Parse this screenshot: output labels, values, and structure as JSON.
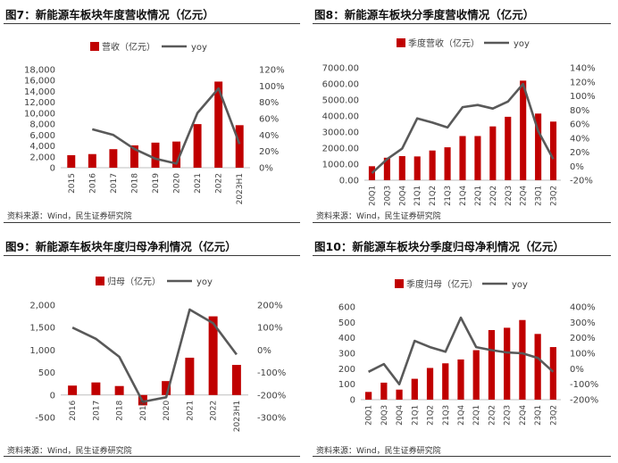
{
  "source_text": "资料来源：Wind，民生证券研究院",
  "colors": {
    "bar": "#c00000",
    "line": "#595959",
    "axis": "#bfbfbf",
    "text": "#404040"
  },
  "chart_data": [
    {
      "type": "bar",
      "title": "图7：新能源车板块年度营收情况（亿元）",
      "categories": [
        "2015",
        "2016",
        "2017",
        "2018",
        "2019",
        "2020",
        "2021",
        "2022",
        "2023H1"
      ],
      "series": [
        {
          "name": "营收（亿元）",
          "kind": "bar",
          "axis": "left",
          "values": [
            2300,
            2500,
            3400,
            4100,
            4600,
            4800,
            8000,
            15800,
            7800
          ]
        },
        {
          "name": "yoy",
          "kind": "line",
          "axis": "right",
          "values": [
            null,
            47,
            40,
            23,
            11,
            5,
            67,
            97,
            29
          ]
        }
      ],
      "ylim": [
        0,
        18000
      ],
      "y_ticks": [
        0,
        2000,
        4000,
        6000,
        8000,
        10000,
        12000,
        14000,
        16000,
        18000
      ],
      "y_tick_labels": [
        "0",
        "2,000",
        "4,000",
        "6,000",
        "8,000",
        "10,000",
        "12,000",
        "14,000",
        "16,000",
        "18,000"
      ],
      "y2lim": [
        0,
        120
      ],
      "y2_ticks": [
        0,
        20,
        40,
        60,
        80,
        100,
        120
      ],
      "y2_tick_labels": [
        "0%",
        "20%",
        "40%",
        "60%",
        "80%",
        "100%",
        "120%"
      ],
      "legend": "top-center"
    },
    {
      "type": "bar",
      "title": "图8：新能源车板块分季度营收情况（亿元）",
      "categories": [
        "20Q1",
        "20Q3",
        "20Q4",
        "21Q1",
        "21Q2",
        "21Q3",
        "21Q4",
        "22Q1",
        "22Q2",
        "22Q3",
        "22Q4",
        "23Q1",
        "23Q2"
      ],
      "series": [
        {
          "name": "季度营收（亿元）",
          "kind": "bar",
          "axis": "left",
          "values": [
            870,
            1400,
            1500,
            1480,
            1850,
            2050,
            2750,
            2750,
            3350,
            3950,
            6200,
            4150,
            3650
          ]
        },
        {
          "name": "yoy",
          "kind": "line",
          "axis": "right",
          "values": [
            -10,
            10,
            25,
            68,
            62,
            55,
            84,
            87,
            82,
            92,
            117,
            50,
            10
          ]
        }
      ],
      "ylim": [
        0,
        7000
      ],
      "y_ticks": [
        0,
        1000,
        2000,
        3000,
        4000,
        5000,
        6000,
        7000
      ],
      "y_tick_labels": [
        "0.00",
        "1000.00",
        "2000.00",
        "3000.00",
        "4000.00",
        "5000.00",
        "6000.00",
        "7000.00"
      ],
      "y2lim": [
        -20,
        140
      ],
      "y2_ticks": [
        -20,
        0,
        20,
        40,
        60,
        80,
        100,
        120,
        140
      ],
      "y2_tick_labels": [
        "-20%",
        "0%",
        "20%",
        "40%",
        "60%",
        "80%",
        "100%",
        "120%",
        "140%"
      ],
      "legend": "top-center"
    },
    {
      "type": "bar",
      "title": "图9：新能源车板块年度归母净利情况（亿元）",
      "categories": [
        "2016",
        "2017",
        "2018",
        "2019",
        "2020",
        "2021",
        "2022",
        "2023H1"
      ],
      "series": [
        {
          "name": "归母（亿元）",
          "kind": "bar",
          "axis": "left",
          "values": [
            210,
            280,
            200,
            -230,
            310,
            830,
            1750,
            670
          ]
        },
        {
          "name": "yoy",
          "kind": "line",
          "axis": "right",
          "values": [
            100,
            50,
            -30,
            -230,
            -210,
            180,
            120,
            -20
          ]
        }
      ],
      "ylim": [
        -500,
        2000
      ],
      "y_ticks": [
        -500,
        0,
        500,
        1000,
        1500,
        2000
      ],
      "y_tick_labels": [
        "-500",
        "0",
        "500",
        "1,000",
        "1,500",
        "2,000"
      ],
      "y2lim": [
        -300,
        200
      ],
      "y2_ticks": [
        -300,
        -200,
        -100,
        0,
        100,
        200
      ],
      "y2_tick_labels": [
        "-300%",
        "-200%",
        "-100%",
        "0%",
        "100%",
        "200%"
      ],
      "legend": "top-center"
    },
    {
      "type": "bar",
      "title": "图10：新能源车板块分季度归母净利情况（亿元）",
      "categories": [
        "20Q1",
        "20Q3",
        "20Q4",
        "21Q1",
        "21Q2",
        "21Q3",
        "21Q4",
        "22Q1",
        "22Q2",
        "22Q3",
        "22Q4",
        "23Q1",
        "23Q2"
      ],
      "series": [
        {
          "name": "季度归母（亿元）",
          "kind": "bar",
          "axis": "left",
          "values": [
            50,
            110,
            65,
            135,
            205,
            235,
            260,
            320,
            450,
            465,
            515,
            425,
            340
          ]
        },
        {
          "name": "yoy",
          "kind": "line",
          "axis": "right",
          "values": [
            -20,
            30,
            -100,
            180,
            140,
            110,
            330,
            140,
            120,
            105,
            100,
            70,
            -20
          ]
        }
      ],
      "ylim": [
        0,
        600
      ],
      "y_ticks": [
        0,
        100,
        200,
        300,
        400,
        500,
        600
      ],
      "y_tick_labels": [
        "0",
        "100",
        "200",
        "300",
        "400",
        "500",
        "600"
      ],
      "y2lim": [
        -200,
        400
      ],
      "y2_ticks": [
        -200,
        -100,
        0,
        100,
        200,
        300,
        400
      ],
      "y2_tick_labels": [
        "-200%",
        "-100%",
        "0%",
        "100%",
        "200%",
        "300%",
        "400%"
      ],
      "legend": "top-center"
    }
  ]
}
